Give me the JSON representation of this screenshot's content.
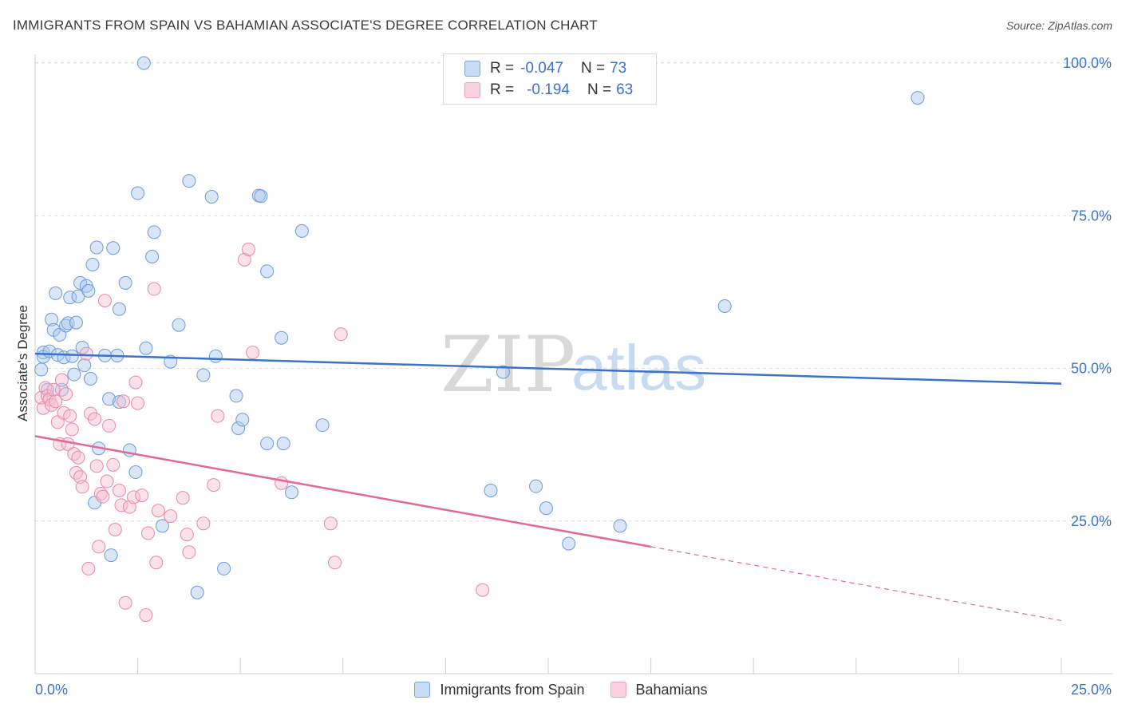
{
  "title": "IMMIGRANTS FROM SPAIN VS BAHAMIAN ASSOCIATE'S DEGREE CORRELATION CHART",
  "source": "Source: ZipAtlas.com",
  "watermark": {
    "zip": "ZIP",
    "atlas": "atlas"
  },
  "legend": {
    "r_label": "R =",
    "n_label": "N =",
    "items": [
      {
        "name": "Immigrants from Spain",
        "r": "-0.047",
        "n": "73",
        "fill": "#a9c8f0",
        "stroke": "#5b8fd6"
      },
      {
        "name": "Bahamians",
        "r": "-0.194",
        "n": "63",
        "fill": "#f6bdd0",
        "stroke": "#e07fa0"
      }
    ]
  },
  "chart_data": {
    "type": "scatter",
    "title": "IMMIGRANTS FROM SPAIN VS BAHAMIAN ASSOCIATE'S DEGREE CORRELATION CHART",
    "xlabel": "",
    "ylabel": "Associate's Degree",
    "xlim": [
      0,
      25
    ],
    "ylim": [
      0,
      104
    ],
    "x_tick_labels": [
      "0.0%",
      "25.0%"
    ],
    "y_ticks": [
      25,
      50,
      75,
      100
    ],
    "y_tick_labels": [
      "25.0%",
      "50.0%",
      "75.0%",
      "100.0%"
    ],
    "grid": true,
    "legend_position": "top-center",
    "colors": {
      "spain": "#3b73c8",
      "bahamians": "#e06a95",
      "tick_label": "#3b73c8"
    },
    "series": [
      {
        "name": "Immigrants from Spain",
        "r": -0.047,
        "n": 73,
        "trend": {
          "x": [
            0,
            25
          ],
          "y": [
            52.4,
            47.5
          ]
        },
        "points": [
          [
            0.2,
            52.6
          ],
          [
            0.2,
            51.9
          ],
          [
            0.15,
            49.8
          ],
          [
            0.3,
            46.5
          ],
          [
            0.35,
            52.8
          ],
          [
            0.4,
            58.0
          ],
          [
            0.45,
            56.3
          ],
          [
            0.5,
            62.3
          ],
          [
            0.55,
            52.2
          ],
          [
            0.6,
            55.5
          ],
          [
            0.65,
            46.5
          ],
          [
            0.7,
            51.8
          ],
          [
            0.75,
            57.0
          ],
          [
            0.8,
            57.4
          ],
          [
            0.85,
            61.6
          ],
          [
            0.9,
            52.0
          ],
          [
            0.95,
            49.0
          ],
          [
            1.0,
            57.5
          ],
          [
            1.05,
            61.8
          ],
          [
            1.1,
            64.0
          ],
          [
            1.15,
            53.4
          ],
          [
            1.2,
            50.5
          ],
          [
            1.25,
            63.5
          ],
          [
            1.3,
            62.7
          ],
          [
            1.35,
            48.3
          ],
          [
            1.4,
            67.0
          ],
          [
            1.5,
            69.8
          ],
          [
            1.55,
            36.9
          ],
          [
            1.7,
            52.1
          ],
          [
            1.8,
            45.0
          ],
          [
            1.9,
            69.7
          ],
          [
            2.0,
            52.1
          ],
          [
            2.05,
            59.7
          ],
          [
            2.2,
            64.0
          ],
          [
            2.3,
            36.6
          ],
          [
            2.45,
            33.0
          ],
          [
            2.5,
            78.7
          ],
          [
            2.65,
            100.0
          ],
          [
            2.7,
            53.3
          ],
          [
            2.85,
            68.3
          ],
          [
            2.9,
            72.3
          ],
          [
            3.1,
            24.2
          ],
          [
            3.3,
            51.1
          ],
          [
            3.5,
            57.1
          ],
          [
            3.75,
            80.7
          ],
          [
            3.95,
            13.3
          ],
          [
            4.1,
            48.9
          ],
          [
            4.3,
            78.1
          ],
          [
            4.4,
            52.0
          ],
          [
            4.6,
            17.2
          ],
          [
            4.9,
            45.5
          ],
          [
            4.95,
            40.2
          ],
          [
            5.05,
            41.6
          ],
          [
            5.45,
            78.3
          ],
          [
            5.5,
            78.2
          ],
          [
            5.65,
            65.9
          ],
          [
            5.65,
            37.7
          ],
          [
            6.0,
            55.0
          ],
          [
            6.05,
            37.7
          ],
          [
            6.25,
            29.7
          ],
          [
            6.5,
            72.5
          ],
          [
            7.0,
            40.7
          ],
          [
            11.1,
            30.0
          ],
          [
            11.4,
            49.4
          ],
          [
            12.2,
            30.7
          ],
          [
            12.45,
            27.1
          ],
          [
            13.0,
            21.3
          ],
          [
            14.25,
            24.2
          ],
          [
            16.8,
            60.2
          ],
          [
            21.5,
            94.3
          ],
          [
            2.05,
            44.5
          ],
          [
            1.85,
            19.4
          ],
          [
            1.45,
            28.0
          ]
        ]
      },
      {
        "name": "Bahamians",
        "r": -0.194,
        "n": 63,
        "trend": {
          "x": [
            0,
            15
          ],
          "y": [
            38.9,
            20.8
          ]
        },
        "trend_dashed": {
          "x": [
            15,
            25
          ],
          "y": [
            20.8,
            8.7
          ]
        },
        "points": [
          [
            0.15,
            45.2
          ],
          [
            0.2,
            43.5
          ],
          [
            0.25,
            46.8
          ],
          [
            0.3,
            45.5
          ],
          [
            0.35,
            44.9
          ],
          [
            0.4,
            44.0
          ],
          [
            0.45,
            46.5
          ],
          [
            0.5,
            44.6
          ],
          [
            0.55,
            41.2
          ],
          [
            0.6,
            37.6
          ],
          [
            0.65,
            48.1
          ],
          [
            0.7,
            42.7
          ],
          [
            0.75,
            45.8
          ],
          [
            0.8,
            37.6
          ],
          [
            0.85,
            42.2
          ],
          [
            0.9,
            40.0
          ],
          [
            0.95,
            36.0
          ],
          [
            1.0,
            32.9
          ],
          [
            1.05,
            35.4
          ],
          [
            1.1,
            32.2
          ],
          [
            1.15,
            30.6
          ],
          [
            1.25,
            52.4
          ],
          [
            1.3,
            17.2
          ],
          [
            1.35,
            42.6
          ],
          [
            1.45,
            41.7
          ],
          [
            1.5,
            34.0
          ],
          [
            1.55,
            20.8
          ],
          [
            1.6,
            29.5
          ],
          [
            1.65,
            29.0
          ],
          [
            1.7,
            61.1
          ],
          [
            1.75,
            31.5
          ],
          [
            1.8,
            40.6
          ],
          [
            1.9,
            34.2
          ],
          [
            1.95,
            23.6
          ],
          [
            2.05,
            30.0
          ],
          [
            2.1,
            27.6
          ],
          [
            2.15,
            44.6
          ],
          [
            2.2,
            11.6
          ],
          [
            2.3,
            27.3
          ],
          [
            2.4,
            28.9
          ],
          [
            2.5,
            44.3
          ],
          [
            2.45,
            47.7
          ],
          [
            2.6,
            29.2
          ],
          [
            2.7,
            9.6
          ],
          [
            2.75,
            23.0
          ],
          [
            2.9,
            63.0
          ],
          [
            2.95,
            18.2
          ],
          [
            3.0,
            26.7
          ],
          [
            3.3,
            25.8
          ],
          [
            3.6,
            28.8
          ],
          [
            3.7,
            22.8
          ],
          [
            3.75,
            19.9
          ],
          [
            4.1,
            24.6
          ],
          [
            4.35,
            30.9
          ],
          [
            4.45,
            42.2
          ],
          [
            5.1,
            67.8
          ],
          [
            5.2,
            69.5
          ],
          [
            5.3,
            52.6
          ],
          [
            6.0,
            31.2
          ],
          [
            7.2,
            24.6
          ],
          [
            7.3,
            18.2
          ],
          [
            7.45,
            55.6
          ],
          [
            10.9,
            13.7
          ]
        ]
      }
    ]
  }
}
